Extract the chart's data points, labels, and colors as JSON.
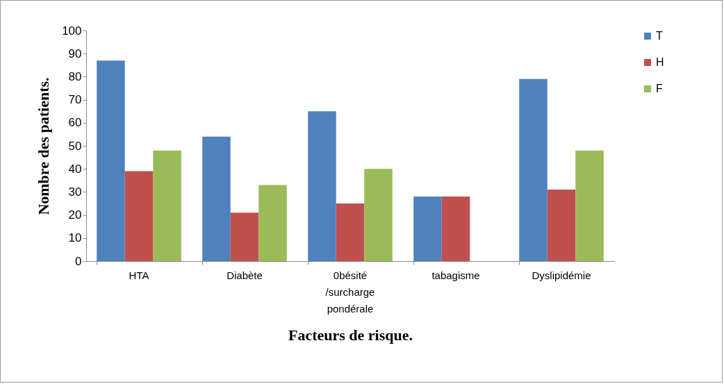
{
  "chart_data": {
    "type": "bar",
    "xlabel": "Facteurs de risque.",
    "ylabel": "Nombre des  patients.",
    "categories": [
      "HTA",
      "Diabète",
      "0bésité /surcharge pondérale",
      "tabagisme",
      "Dyslipidémie"
    ],
    "series": [
      {
        "name": "T",
        "color": "#4f81bd",
        "values": [
          87,
          54,
          65,
          28,
          79
        ]
      },
      {
        "name": "H",
        "color": "#c0504d",
        "values": [
          39,
          21,
          25,
          28,
          31
        ]
      },
      {
        "name": "F",
        "color": "#9bbb59",
        "values": [
          48,
          33,
          40,
          null,
          48
        ]
      }
    ],
    "ylim": [
      0,
      100
    ],
    "yticks": [
      0,
      10,
      20,
      30,
      40,
      50,
      60,
      70,
      80,
      90,
      100
    ],
    "grid": false,
    "legend": "right"
  }
}
